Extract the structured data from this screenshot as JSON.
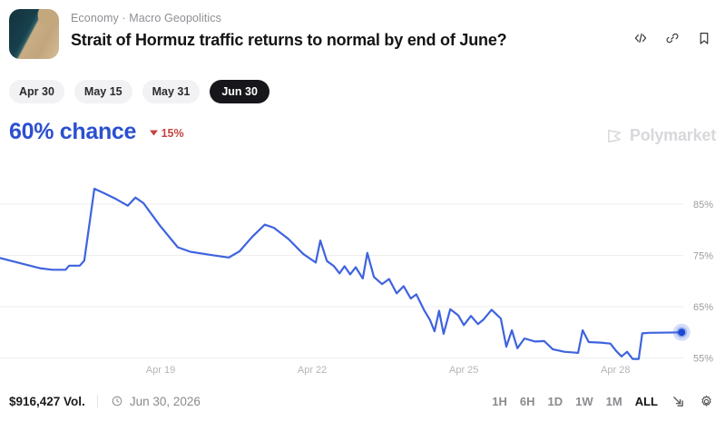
{
  "header": {
    "breadcrumb": "Economy · Macro Geopolitics",
    "title": "Strait of Hormuz traffic returns to normal by end of June?",
    "thumbnail": "satellite-image-strait-of-hormuz",
    "action_icons": [
      "embed-icon",
      "link-icon",
      "bookmark-icon"
    ]
  },
  "outcome_tabs": {
    "items": [
      {
        "label": "Apr 30",
        "active": false
      },
      {
        "label": "May 15",
        "active": false
      },
      {
        "label": "May 31",
        "active": false
      },
      {
        "label": "Jun 30",
        "active": true
      }
    ]
  },
  "chance": {
    "value": "60% chance",
    "change": "15%",
    "direction": "down"
  },
  "watermark": {
    "label": "Polymarket"
  },
  "chart_data": {
    "type": "line",
    "title": "Jun 30 outcome probability history",
    "current_value_pct": 60,
    "x_axis": {
      "unit": "days since Apr 15",
      "tick_labels": [
        "Apr 19",
        "Apr 22",
        "Apr 25",
        "Apr 28"
      ],
      "tick_days": [
        4,
        7,
        10,
        13
      ]
    },
    "y_axis": {
      "unit": "%",
      "tick_labels": [
        "85%",
        "75%",
        "65%",
        "55%"
      ],
      "tick_values": [
        85,
        75,
        65,
        55
      ],
      "range": [
        52,
        92
      ],
      "grid": true,
      "side": "right"
    },
    "series": [
      {
        "name": "Jun 30",
        "color": "#3e63de",
        "points": [
          [
            0.82,
            74.5
          ],
          [
            1.18,
            73.6
          ],
          [
            1.61,
            72.5
          ],
          [
            1.86,
            72.2
          ],
          [
            2.12,
            72.2
          ],
          [
            2.19,
            73.0
          ],
          [
            2.4,
            73.0
          ],
          [
            2.49,
            74.0
          ],
          [
            2.69,
            88.0
          ],
          [
            2.87,
            87.2
          ],
          [
            3.12,
            86.0
          ],
          [
            3.35,
            84.7
          ],
          [
            3.5,
            86.3
          ],
          [
            3.66,
            85.2
          ],
          [
            3.98,
            80.9
          ],
          [
            4.34,
            76.6
          ],
          [
            4.59,
            75.7
          ],
          [
            4.99,
            75.1
          ],
          [
            5.35,
            74.6
          ],
          [
            5.56,
            75.8
          ],
          [
            5.81,
            78.6
          ],
          [
            6.06,
            81.0
          ],
          [
            6.24,
            80.4
          ],
          [
            6.53,
            78.2
          ],
          [
            6.82,
            75.3
          ],
          [
            7.07,
            73.6
          ],
          [
            7.16,
            77.9
          ],
          [
            7.29,
            73.9
          ],
          [
            7.43,
            72.9
          ],
          [
            7.54,
            71.5
          ],
          [
            7.64,
            72.9
          ],
          [
            7.75,
            71.3
          ],
          [
            7.86,
            72.7
          ],
          [
            8.0,
            70.5
          ],
          [
            8.09,
            75.5
          ],
          [
            8.22,
            70.8
          ],
          [
            8.38,
            69.4
          ],
          [
            8.52,
            70.4
          ],
          [
            8.67,
            67.6
          ],
          [
            8.81,
            69.0
          ],
          [
            8.95,
            66.6
          ],
          [
            9.06,
            67.4
          ],
          [
            9.21,
            64.4
          ],
          [
            9.33,
            62.4
          ],
          [
            9.42,
            60.2
          ],
          [
            9.51,
            64.2
          ],
          [
            9.6,
            59.7
          ],
          [
            9.73,
            64.5
          ],
          [
            9.89,
            63.3
          ],
          [
            10.0,
            61.4
          ],
          [
            10.14,
            63.2
          ],
          [
            10.28,
            61.6
          ],
          [
            10.39,
            62.5
          ],
          [
            10.55,
            64.4
          ],
          [
            10.73,
            62.7
          ],
          [
            10.84,
            57.2
          ],
          [
            10.95,
            60.4
          ],
          [
            11.06,
            56.9
          ],
          [
            11.2,
            58.8
          ],
          [
            11.41,
            58.2
          ],
          [
            11.59,
            58.3
          ],
          [
            11.76,
            56.7
          ],
          [
            11.99,
            56.2
          ],
          [
            12.26,
            56.0
          ],
          [
            12.35,
            60.4
          ],
          [
            12.47,
            58.1
          ],
          [
            12.71,
            58.0
          ],
          [
            12.9,
            57.8
          ],
          [
            13.01,
            56.4
          ],
          [
            13.12,
            55.3
          ],
          [
            13.23,
            56.2
          ],
          [
            13.34,
            54.8
          ],
          [
            13.46,
            54.8
          ],
          [
            13.53,
            59.8
          ],
          [
            13.66,
            59.9
          ],
          [
            14.31,
            60.0
          ]
        ]
      }
    ],
    "endpoint": {
      "day": 14.31,
      "pct": 60
    }
  },
  "footer": {
    "volume": "$916,427 Vol.",
    "end_date": "Jun 30, 2026",
    "time_ranges": [
      {
        "label": "1H",
        "active": false
      },
      {
        "label": "6H",
        "active": false
      },
      {
        "label": "1D",
        "active": false
      },
      {
        "label": "1W",
        "active": false
      },
      {
        "label": "1M",
        "active": false
      },
      {
        "label": "ALL",
        "active": true
      }
    ],
    "tool_icons": [
      "expand-icon",
      "settings-icon"
    ]
  },
  "colors": {
    "accent_blue": "#2b50cf",
    "line_blue": "#3e63de",
    "change_red": "#c64444",
    "active_tab_bg": "#17171b",
    "grid_gray": "#eeeeee",
    "axis_label_gray": "#a8a8ac"
  }
}
